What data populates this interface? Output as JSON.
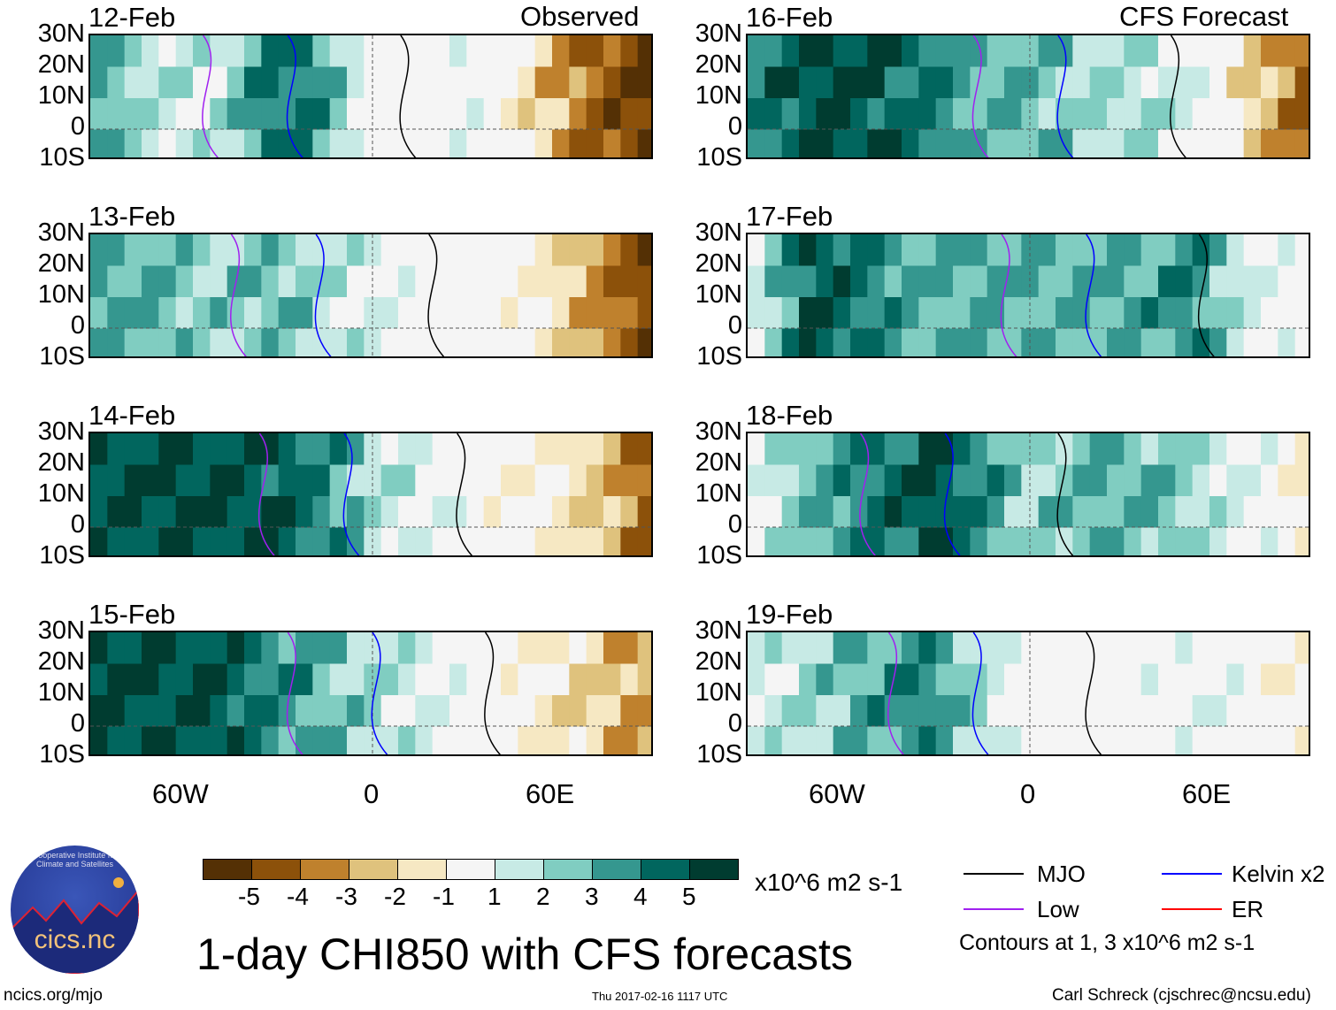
{
  "labels": {
    "observed": "Observed",
    "forecast": "CFS Forecast"
  },
  "lat_ticks": [
    "30N",
    "20N",
    "10N",
    "0",
    "10S"
  ],
  "lon_ticks": [
    "60W",
    "0",
    "60E"
  ],
  "panels": [
    {
      "date": "12-Feb",
      "field": [
        3,
        2,
        1,
        4,
        4,
        0,
        0,
        1,
        -2,
        -4,
        -5
      ]
    },
    {
      "date": "13-Feb",
      "field": [
        3,
        3,
        2,
        3,
        2,
        1,
        0,
        0,
        -1,
        -3,
        -5
      ]
    },
    {
      "date": "14-Feb",
      "field": [
        5,
        5,
        5,
        5,
        4,
        2,
        1,
        0,
        -1,
        -2,
        -4
      ]
    },
    {
      "date": "15-Feb",
      "field": [
        5,
        5,
        5,
        4,
        3,
        2,
        1,
        0,
        -1,
        -2,
        -3
      ]
    },
    {
      "date": "16-Feb",
      "field": [
        4,
        5,
        5,
        4,
        3,
        3,
        2,
        2,
        1,
        -2,
        -4
      ]
    },
    {
      "date": "17-Feb",
      "field": [
        1,
        5,
        4,
        3,
        3,
        3,
        3,
        3,
        4,
        1,
        0
      ]
    },
    {
      "date": "18-Feb",
      "field": [
        1,
        3,
        4,
        5,
        4,
        2,
        3,
        3,
        2,
        1,
        -1
      ]
    },
    {
      "date": "19-Feb",
      "field": [
        1,
        2,
        3,
        4,
        2,
        0,
        0,
        0,
        1,
        0,
        -1
      ]
    }
  ],
  "colorbar": {
    "colors": [
      "#543005",
      "#8c510a",
      "#bf812d",
      "#dfc27d",
      "#f6e8c3",
      "#f5f5f5",
      "#c7eae5",
      "#80cdc1",
      "#35978f",
      "#01665e",
      "#003c30"
    ],
    "ticks": [
      "-5",
      "-4",
      "-3",
      "-2",
      "-1",
      "1",
      "2",
      "3",
      "4",
      "5"
    ],
    "units": "x10^6 m2 s-1"
  },
  "legend": {
    "items": [
      {
        "label": "MJO",
        "color": "#000000"
      },
      {
        "label": "Kelvin x2",
        "color": "#0000ff"
      },
      {
        "label": "Low",
        "color": "#a020f0"
      },
      {
        "label": "ER",
        "color": "#ff0000"
      }
    ],
    "note": "Contours at 1, 3 x10^6 m2 s-1"
  },
  "title": "1-day CHI850 with CFS forecasts",
  "logo_text": "cics.nc",
  "logo_ring": "Cooperative Institute for Climate and Satellites",
  "footer": {
    "left": "ncics.org/mjo",
    "center": "Thu 2017-02-16 1117 UTC",
    "right": "Carl Schreck (cjschrec@ncsu.edu)"
  }
}
